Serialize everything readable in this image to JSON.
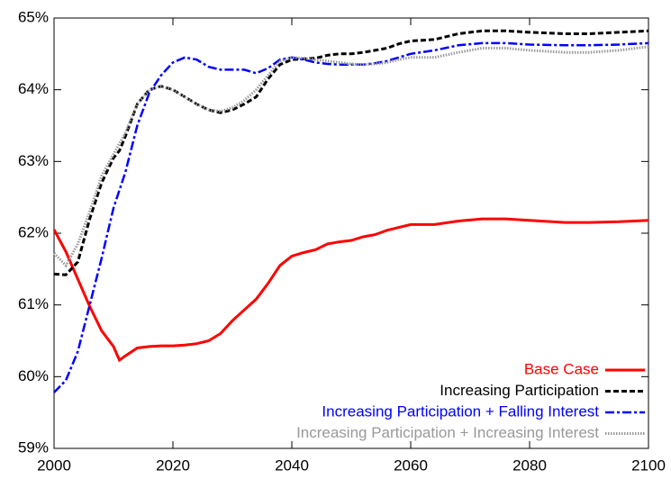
{
  "chart_data": {
    "type": "line",
    "x": [
      2000,
      2002,
      2004,
      2006,
      2008,
      2010,
      2011,
      2012,
      2014,
      2016,
      2018,
      2020,
      2022,
      2024,
      2026,
      2028,
      2030,
      2032,
      2034,
      2036,
      2038,
      2040,
      2042,
      2044,
      2046,
      2048,
      2050,
      2052,
      2054,
      2056,
      2058,
      2060,
      2064,
      2068,
      2072,
      2076,
      2080,
      2086,
      2090,
      2095,
      2100
    ],
    "series": [
      {
        "name": "Base Case",
        "color": "#ff0000",
        "dash": "solid",
        "values": [
          62.05,
          61.74,
          61.36,
          60.98,
          60.64,
          60.42,
          60.23,
          60.29,
          60.4,
          60.42,
          60.43,
          60.43,
          60.44,
          60.46,
          60.5,
          60.6,
          60.78,
          60.93,
          61.08,
          61.3,
          61.55,
          61.68,
          61.73,
          61.77,
          61.85,
          61.88,
          61.9,
          61.95,
          61.98,
          62.04,
          62.08,
          62.12,
          62.12,
          62.17,
          62.2,
          62.2,
          62.18,
          62.15,
          62.15,
          62.16,
          62.18
        ]
      },
      {
        "name": "Increasing Participation",
        "color": "#000000",
        "dash": "dashed",
        "values": [
          61.43,
          61.42,
          61.6,
          62.2,
          62.7,
          63.05,
          63.15,
          63.35,
          63.8,
          64.0,
          64.05,
          64.0,
          63.9,
          63.8,
          63.72,
          63.68,
          63.72,
          63.8,
          63.9,
          64.15,
          64.35,
          64.42,
          64.43,
          64.44,
          64.48,
          64.5,
          64.5,
          64.52,
          64.55,
          64.58,
          64.64,
          64.68,
          64.7,
          64.78,
          64.82,
          64.82,
          64.8,
          64.78,
          64.78,
          64.8,
          64.82
        ]
      },
      {
        "name": "Increasing Participation + Falling Interest",
        "color": "#0000ff",
        "dash": "dashdot",
        "values": [
          59.78,
          59.95,
          60.35,
          61.0,
          61.65,
          62.35,
          62.6,
          62.85,
          63.5,
          63.95,
          64.2,
          64.38,
          64.45,
          64.42,
          64.32,
          64.28,
          64.28,
          64.28,
          64.23,
          64.3,
          64.42,
          64.45,
          64.42,
          64.38,
          64.36,
          64.35,
          64.35,
          64.35,
          64.37,
          64.4,
          64.45,
          64.5,
          64.55,
          64.62,
          64.65,
          64.65,
          64.63,
          64.62,
          64.62,
          64.63,
          64.65
        ]
      },
      {
        "name": "Increasing Participation + Increasing Interest",
        "color": "#999999",
        "dash": "dotted",
        "values": [
          61.72,
          61.55,
          61.85,
          62.3,
          62.8,
          63.1,
          63.25,
          63.4,
          63.8,
          64.0,
          64.05,
          64.0,
          63.9,
          63.8,
          63.72,
          63.7,
          63.75,
          63.85,
          64.0,
          64.2,
          64.4,
          64.45,
          64.44,
          64.42,
          64.4,
          64.38,
          64.36,
          64.35,
          64.36,
          64.38,
          64.42,
          64.45,
          64.45,
          64.52,
          64.58,
          64.58,
          64.55,
          64.52,
          64.52,
          64.55,
          64.6
        ]
      }
    ],
    "xlim": [
      2000,
      2100
    ],
    "xticks": [
      2000,
      2020,
      2040,
      2060,
      2080,
      2100
    ],
    "ylim": [
      59,
      65
    ],
    "yticks": [
      {
        "value": 59,
        "label": "59%"
      },
      {
        "value": 60,
        "label": "60%"
      },
      {
        "value": 61,
        "label": "61%"
      },
      {
        "value": 62,
        "label": "62%"
      },
      {
        "value": 63,
        "label": "63%"
      },
      {
        "value": 64,
        "label": "64%"
      },
      {
        "value": 65,
        "label": "65%"
      }
    ],
    "legend": "lower right",
    "grid": false
  }
}
